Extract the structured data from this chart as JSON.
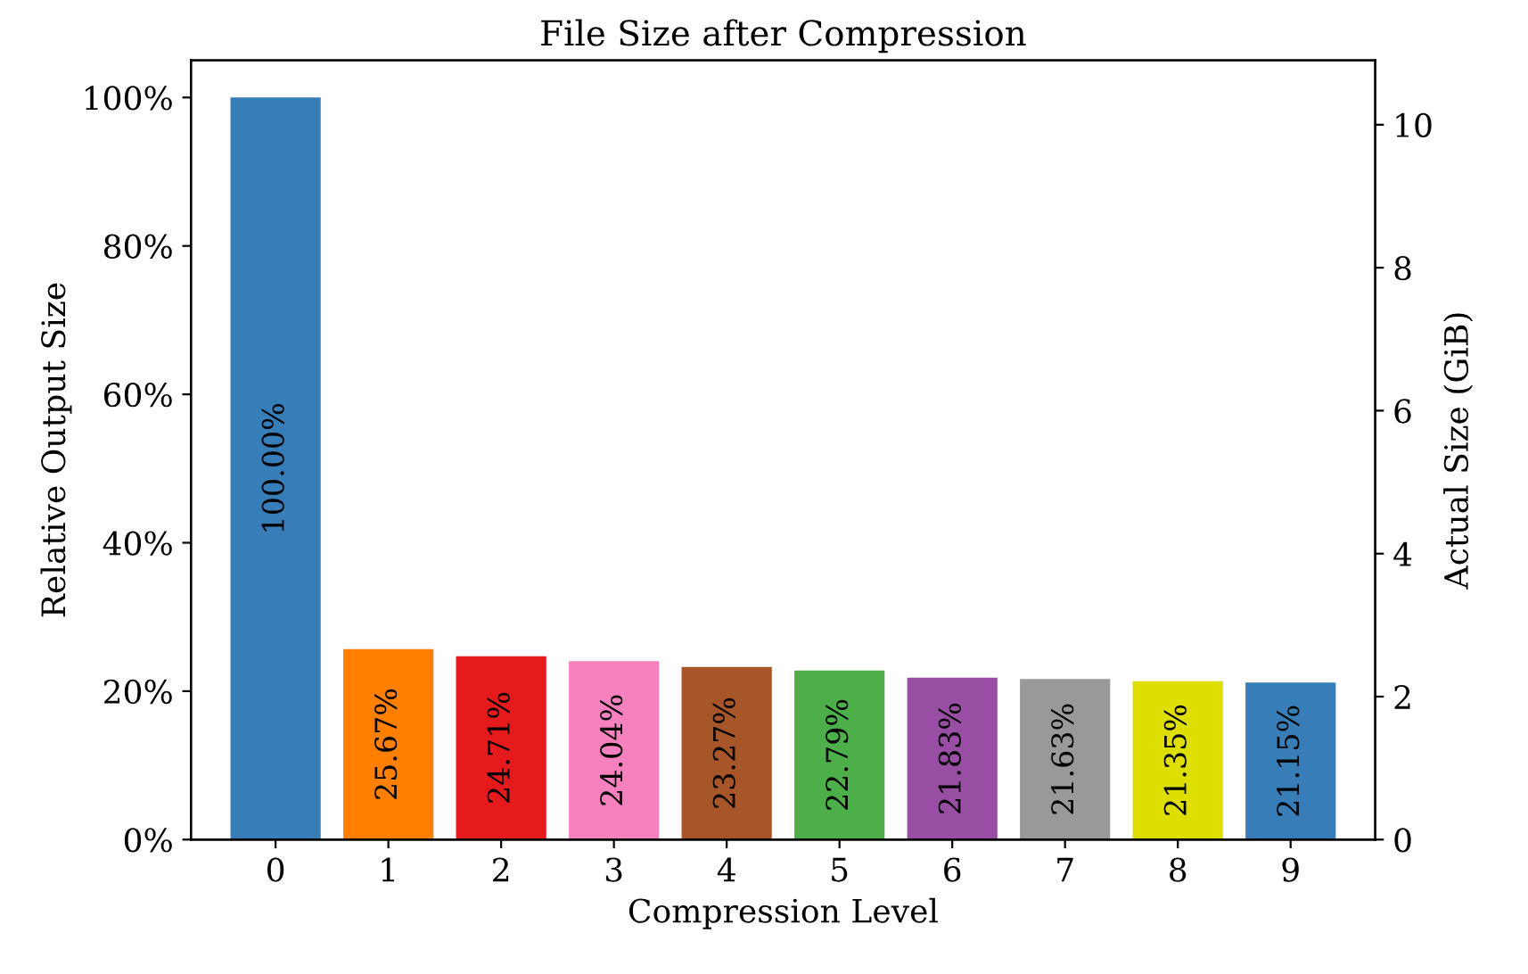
{
  "chart_data": {
    "type": "bar",
    "title": "File Size after Compression",
    "xlabel": "Compression Level",
    "ylabel": "Relative Output Size",
    "y2label": "Actual Size (GiB)",
    "categories": [
      "0",
      "1",
      "2",
      "3",
      "4",
      "5",
      "6",
      "7",
      "8",
      "9"
    ],
    "values": [
      100.0,
      25.67,
      24.71,
      24.04,
      23.27,
      22.79,
      21.83,
      21.63,
      21.35,
      21.15
    ],
    "colors": [
      "#377eb8",
      "#ff7f00",
      "#e41a1c",
      "#f781bf",
      "#a65628",
      "#4daf4a",
      "#984ea3",
      "#999999",
      "#dede00",
      "#377eb8"
    ],
    "value_labels": [
      "100.00%",
      "25.67%",
      "24.71%",
      "24.04%",
      "23.27%",
      "22.79%",
      "21.83%",
      "21.63%",
      "21.35%",
      "21.15%"
    ],
    "ylim": [
      0,
      105
    ],
    "yticks": [
      {
        "value": 0,
        "label": "0%"
      },
      {
        "value": 20,
        "label": "20%"
      },
      {
        "value": 40,
        "label": "40%"
      },
      {
        "value": 60,
        "label": "60%"
      },
      {
        "value": 80,
        "label": "80%"
      },
      {
        "value": 100,
        "label": "100%"
      }
    ],
    "y2lim": [
      0,
      10.9
    ],
    "y2ticks": [
      0,
      2,
      4,
      6,
      8,
      10
    ],
    "grid": false,
    "legend": false
  }
}
